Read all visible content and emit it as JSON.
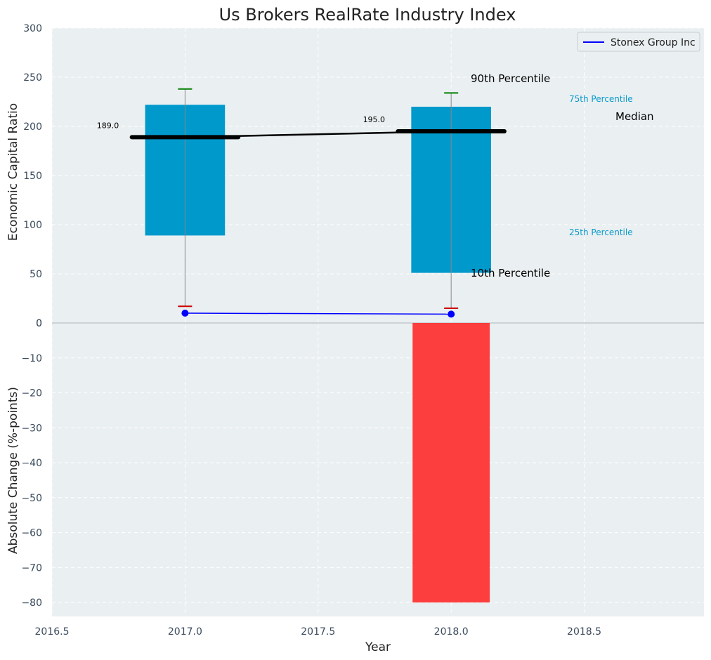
{
  "chart_data": {
    "type": "box-summary-with-bar",
    "title": "Us Brokers RealRate Industry Index",
    "xlabel": "Year",
    "xlim": [
      2016.5,
      2018.95
    ],
    "xticks": [
      2016.5,
      2017.0,
      2017.5,
      2018.0,
      2018.5
    ],
    "xtick_labels": [
      "2016.5",
      "2017.0",
      "2017.5",
      "2018.0",
      "2018.5"
    ],
    "top": {
      "ylabel": "Economic Capital Ratio",
      "ylim": [
        0,
        300
      ],
      "yticks": [
        0,
        50,
        100,
        150,
        200,
        250,
        300
      ],
      "years": [
        2017,
        2018
      ],
      "p10": [
        17,
        15
      ],
      "p25": [
        89,
        51
      ],
      "median": [
        189,
        195
      ],
      "p75": [
        222,
        220
      ],
      "p90": [
        238,
        234
      ],
      "median_labels": [
        "189.0",
        "195.0"
      ],
      "company": {
        "name": "Stonex Group Inc",
        "values": [
          10,
          9
        ]
      },
      "annotations": {
        "p90": "90th Percentile",
        "p75": "75th Percentile",
        "median": "Median",
        "p25": "25th Percentile",
        "p10": "10th Percentile"
      }
    },
    "bottom": {
      "type": "bar",
      "ylabel": "Absolute Change (%-points)",
      "ylim": [
        -84,
        0
      ],
      "yticks": [
        0,
        -10,
        -20,
        -30,
        -40,
        -50,
        -60,
        -70,
        -80
      ],
      "ytick_labels": [
        "0",
        "−10",
        "−20",
        "−30",
        "−40",
        "−50",
        "−60",
        "−70",
        "−80"
      ],
      "years": [
        2018
      ],
      "values": [
        -80
      ]
    },
    "legend": {
      "entries": [
        "Stonex Group Inc"
      ],
      "placement": "top-right"
    }
  },
  "colors": {
    "plot_bg": "#eaeff1",
    "box": "#0099cc",
    "median": "#000000",
    "company_line": "#0000ff",
    "p90_cap": "#008000",
    "p10_cap": "#cc0000",
    "whisker": "#888888",
    "bar_negative": "#ff2a2a"
  }
}
